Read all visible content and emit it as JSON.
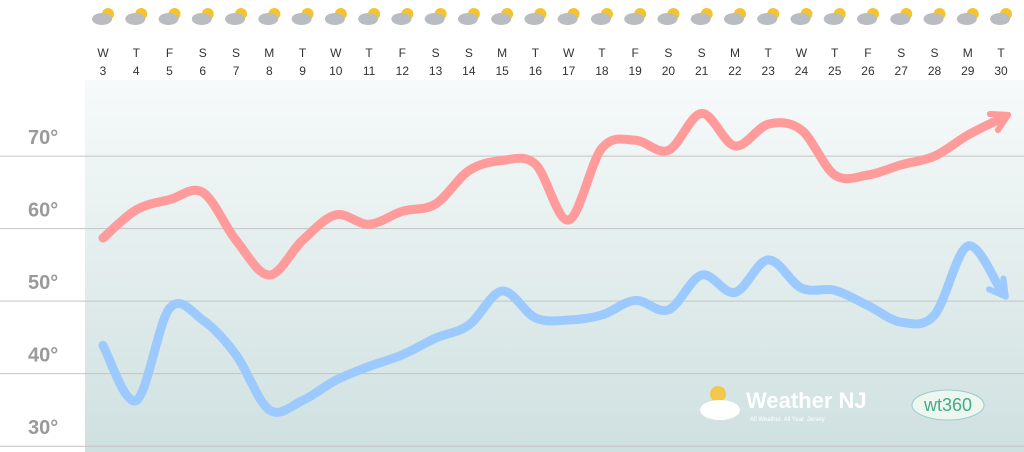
{
  "chart_data": {
    "type": "line",
    "categories": [
      {
        "day": "W",
        "date": "3"
      },
      {
        "day": "T",
        "date": "4"
      },
      {
        "day": "F",
        "date": "5"
      },
      {
        "day": "S",
        "date": "6"
      },
      {
        "day": "S",
        "date": "7"
      },
      {
        "day": "M",
        "date": "8"
      },
      {
        "day": "T",
        "date": "9"
      },
      {
        "day": "W",
        "date": "10"
      },
      {
        "day": "T",
        "date": "11"
      },
      {
        "day": "F",
        "date": "12"
      },
      {
        "day": "S",
        "date": "13"
      },
      {
        "day": "S",
        "date": "14"
      },
      {
        "day": "M",
        "date": "15"
      },
      {
        "day": "T",
        "date": "16"
      },
      {
        "day": "W",
        "date": "17"
      },
      {
        "day": "T",
        "date": "18"
      },
      {
        "day": "F",
        "date": "19"
      },
      {
        "day": "S",
        "date": "20"
      },
      {
        "day": "S",
        "date": "21"
      },
      {
        "day": "M",
        "date": "22"
      },
      {
        "day": "T",
        "date": "23"
      },
      {
        "day": "W",
        "date": "24"
      },
      {
        "day": "T",
        "date": "25"
      },
      {
        "day": "F",
        "date": "26"
      },
      {
        "day": "S",
        "date": "27"
      },
      {
        "day": "S",
        "date": "28"
      },
      {
        "day": "M",
        "date": "29"
      },
      {
        "day": "T",
        "date": "30"
      }
    ],
    "series": [
      {
        "color": "#ff9b9b",
        "values": [
          58.7,
          62.6,
          64,
          65,
          58.4,
          53.6,
          58.4,
          61.9,
          60.6,
          62.4,
          63.4,
          68,
          69.4,
          68.9,
          61.2,
          71.1,
          72.2,
          70.8,
          75.9,
          71.4,
          74.4,
          73.6,
          67.4,
          67.4,
          68.8,
          70,
          72.9,
          75.2
        ]
      },
      {
        "color": "#9ccaff",
        "values": [
          43.9,
          36.3,
          49,
          47.4,
          42.6,
          35,
          36.3,
          39.1,
          41,
          42.6,
          44.9,
          46.7,
          51.4,
          47.7,
          47.4,
          48.1,
          50.1,
          48.8,
          53.6,
          51.2,
          55.7,
          51.8,
          51.5,
          49.4,
          47.1,
          48.1,
          57.6,
          51.5
        ]
      }
    ],
    "ylim": [
      29.2,
      80.5
    ],
    "yticks": [
      {
        "value": 30,
        "label": "30°"
      },
      {
        "value": 40,
        "label": "40°"
      },
      {
        "value": 50,
        "label": "50°"
      },
      {
        "value": 60,
        "label": "60°"
      },
      {
        "value": 70,
        "label": "70°"
      }
    ],
    "grid": true,
    "logo": {
      "name": "Weather NJ",
      "tagline": "All Weather. All Year. Jersey",
      "partner": "wt360"
    }
  }
}
